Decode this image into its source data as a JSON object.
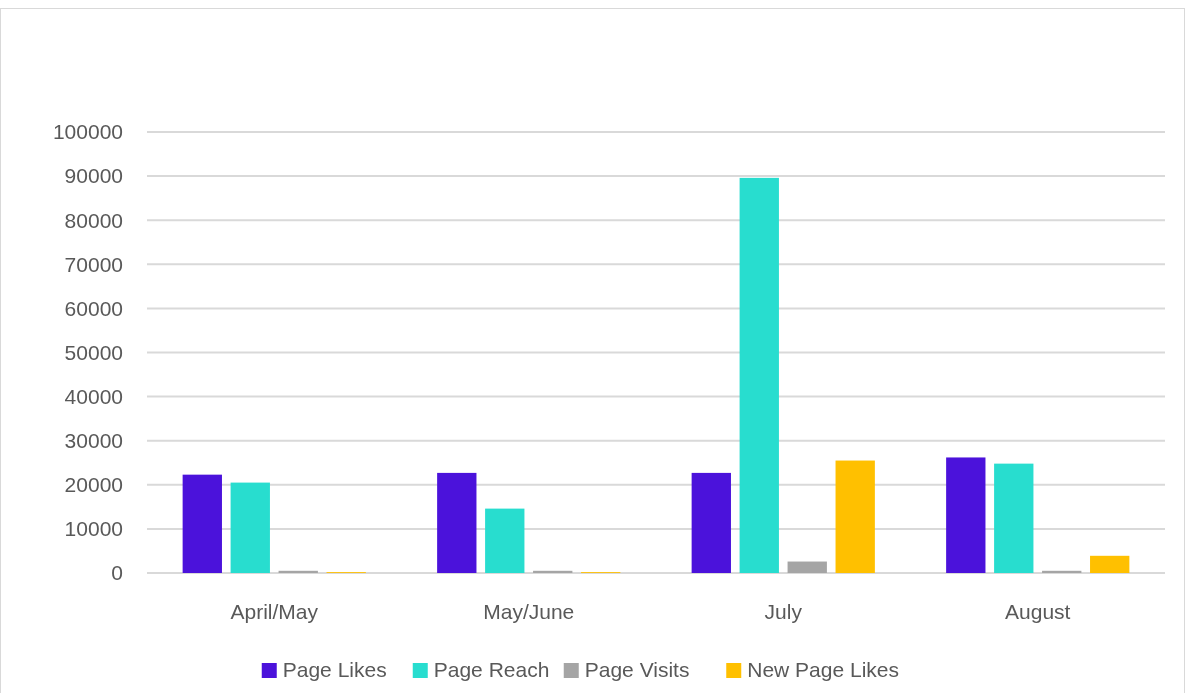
{
  "chart_data": {
    "type": "bar",
    "categories": [
      "April/May",
      "May/June",
      "July",
      "August"
    ],
    "series": [
      {
        "name": "Page Likes",
        "color": "#4b12db",
        "values": [
          22300,
          22700,
          22700,
          26200
        ]
      },
      {
        "name": "Page Reach",
        "color": "#28ddcf",
        "values": [
          20500,
          14600,
          89600,
          24800
        ]
      },
      {
        "name": "Page Visits",
        "color": "#a5a5a5",
        "values": [
          500,
          500,
          2600,
          500
        ]
      },
      {
        "name": "New Page Likes",
        "color": "#ffc000",
        "values": [
          200,
          200,
          25500,
          3900
        ]
      }
    ],
    "ylim": [
      0,
      100000
    ],
    "yticks": [
      0,
      10000,
      20000,
      30000,
      40000,
      50000,
      60000,
      70000,
      80000,
      90000,
      100000
    ],
    "grid": "y",
    "legend": "bottom"
  }
}
